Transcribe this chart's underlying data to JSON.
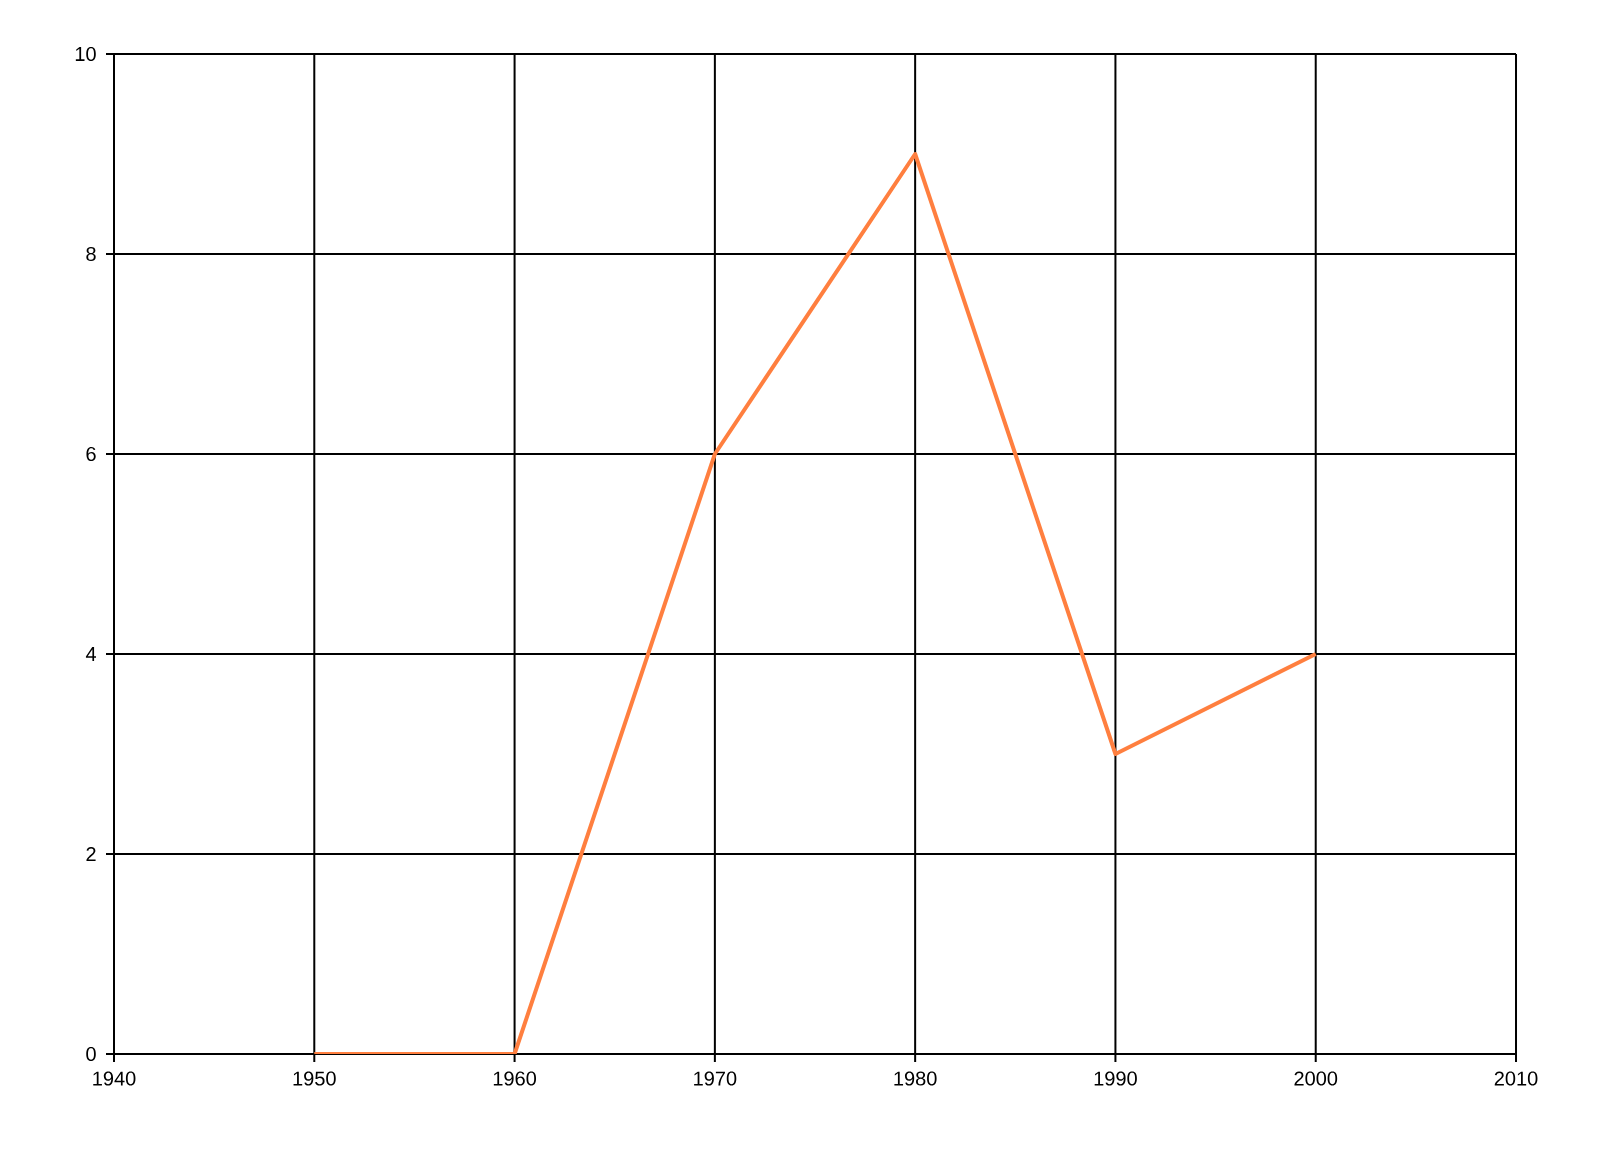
{
  "chart_data": {
    "type": "line",
    "x": [
      1950,
      1960,
      1970,
      1980,
      1990,
      2000
    ],
    "series": [
      {
        "color": "#ff7f3f",
        "values": [
          0,
          0,
          6,
          9,
          3,
          4
        ]
      }
    ],
    "xlim": [
      1940,
      2010
    ],
    "xticks": [
      1940,
      1950,
      1960,
      1970,
      1980,
      1990,
      2000,
      2010
    ],
    "ylim": [
      0,
      10
    ],
    "yticks": [
      0,
      2,
      4,
      6,
      8,
      10
    ],
    "grid": true,
    "marker": "none",
    "line_style": "solid"
  }
}
